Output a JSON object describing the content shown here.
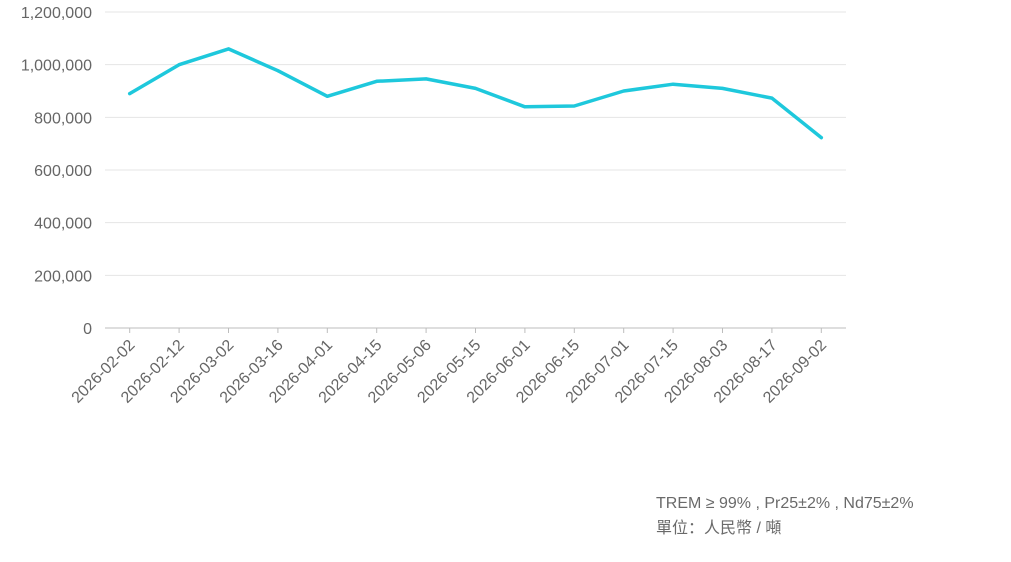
{
  "chart_data": {
    "type": "line",
    "title": "",
    "xlabel": "",
    "ylabel": "",
    "categories": [
      "2026-02-02",
      "2026-02-12",
      "2026-03-02",
      "2026-03-16",
      "2026-04-01",
      "2026-04-15",
      "2026-05-06",
      "2026-05-15",
      "2026-06-01",
      "2026-06-15",
      "2026-07-01",
      "2026-07-15",
      "2026-08-03",
      "2026-08-17",
      "2026-09-02"
    ],
    "series": [
      {
        "values": [
          890000,
          1000000,
          1060000,
          977000,
          880000,
          937000,
          946000,
          910000,
          840000,
          843000,
          900000,
          926000,
          910000,
          873000,
          723000
        ],
        "color": "#1ec8dc"
      }
    ],
    "ylim": [
      0,
      1200000
    ],
    "yticks": [
      0,
      200000,
      400000,
      600000,
      800000,
      1000000,
      1200000
    ],
    "ytick_labels": [
      "0",
      "200,000",
      "400,000",
      "600,000",
      "800,000",
      "1,000,000",
      "1,200,000"
    ],
    "grid": true,
    "legend": "none"
  },
  "notes": {
    "spec": "TREM ≥ 99% , Pr25±2% , Nd75±2%",
    "unit": "單位：人民幣 / 噸"
  },
  "colors": {
    "line": "#1ec8dc",
    "grid": "#e5e5e5",
    "axis": "#bdbdbd",
    "text": "#666666"
  }
}
